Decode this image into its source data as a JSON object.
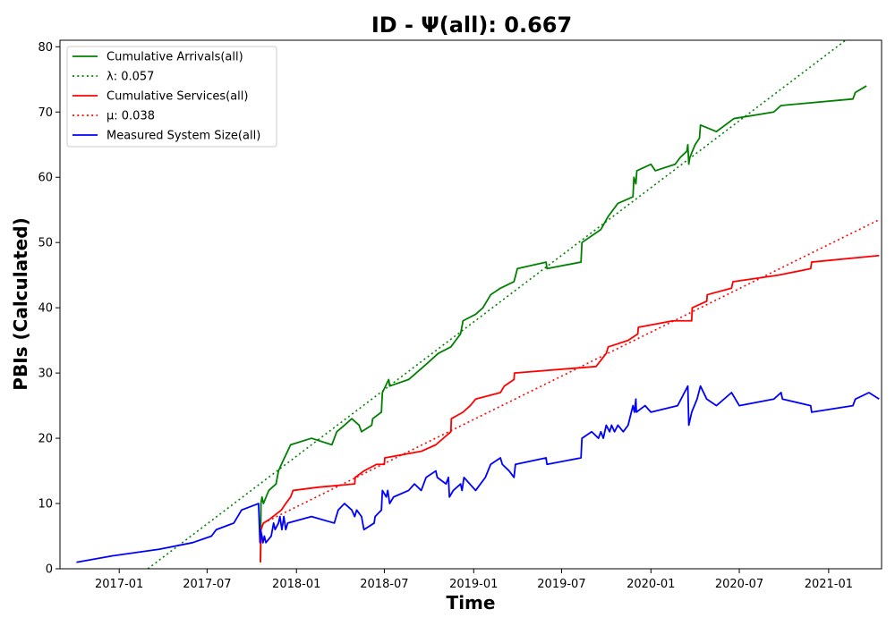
{
  "chart_data": {
    "type": "line",
    "title": "ID -  Ψ(all): 0.667",
    "xlabel": "Time",
    "ylabel": "PBIs (Calculated)",
    "xlim": [
      "2016-09-01",
      "2021-04-20"
    ],
    "ylim": [
      0,
      81
    ],
    "yticks": [
      0,
      10,
      20,
      30,
      40,
      50,
      60,
      70,
      80
    ],
    "xticks": [
      "2017-01",
      "2017-07",
      "2018-01",
      "2018-07",
      "2019-01",
      "2019-07",
      "2020-01",
      "2020-07",
      "2021-01"
    ],
    "grid": false,
    "legend_position": "upper-left",
    "series": [
      {
        "name": "Cumulative Arrivals(all)",
        "color": "#008000",
        "style": "solid",
        "points": [
          [
            "2017-10-19",
            1
          ],
          [
            "2017-10-20",
            10
          ],
          [
            "2017-10-22",
            11
          ],
          [
            "2017-10-25",
            10
          ],
          [
            "2017-11-05",
            12
          ],
          [
            "2017-11-20",
            13
          ],
          [
            "2017-11-25",
            15
          ],
          [
            "2017-12-01",
            16
          ],
          [
            "2017-12-20",
            19
          ],
          [
            "2018-02-01",
            20
          ],
          [
            "2018-03-15",
            19
          ],
          [
            "2018-03-25",
            21
          ],
          [
            "2018-04-10",
            22
          ],
          [
            "2018-04-25",
            23
          ],
          [
            "2018-05-10",
            22
          ],
          [
            "2018-05-15",
            21
          ],
          [
            "2018-06-05",
            22
          ],
          [
            "2018-06-07",
            23
          ],
          [
            "2018-06-25",
            24
          ],
          [
            "2018-06-27",
            27
          ],
          [
            "2018-07-10",
            29
          ],
          [
            "2018-07-12",
            28
          ],
          [
            "2018-08-20",
            29
          ],
          [
            "2018-09-20",
            31
          ],
          [
            "2018-10-05",
            32
          ],
          [
            "2018-10-20",
            33
          ],
          [
            "2018-11-15",
            34
          ],
          [
            "2018-11-25",
            35
          ],
          [
            "2018-12-05",
            36
          ],
          [
            "2018-12-10",
            38
          ],
          [
            "2019-01-05",
            39
          ],
          [
            "2019-01-20",
            40
          ],
          [
            "2019-02-05",
            42
          ],
          [
            "2019-02-25",
            43
          ],
          [
            "2019-03-25",
            44
          ],
          [
            "2019-04-01",
            46
          ],
          [
            "2019-05-30",
            47
          ],
          [
            "2019-06-01",
            46
          ],
          [
            "2019-08-10",
            47
          ],
          [
            "2019-08-12",
            50
          ],
          [
            "2019-09-20",
            52
          ],
          [
            "2019-10-05",
            54
          ],
          [
            "2019-10-25",
            56
          ],
          [
            "2019-11-25",
            57
          ],
          [
            "2019-11-27",
            60
          ],
          [
            "2019-12-01",
            59
          ],
          [
            "2019-12-03",
            61
          ],
          [
            "2020-01-01",
            62
          ],
          [
            "2020-01-10",
            61
          ],
          [
            "2020-02-20",
            62
          ],
          [
            "2020-03-01",
            63
          ],
          [
            "2020-03-15",
            64
          ],
          [
            "2020-03-17",
            65
          ],
          [
            "2020-03-19",
            62
          ],
          [
            "2020-03-21",
            63
          ],
          [
            "2020-04-01",
            65
          ],
          [
            "2020-04-10",
            66
          ],
          [
            "2020-04-12",
            68
          ],
          [
            "2020-05-15",
            67
          ],
          [
            "2020-06-20",
            69
          ],
          [
            "2020-09-10",
            70
          ],
          [
            "2020-09-25",
            71
          ],
          [
            "2021-02-20",
            72
          ],
          [
            "2021-02-25",
            73
          ],
          [
            "2021-03-20",
            74
          ]
        ]
      },
      {
        "name": "λ: 0.057",
        "color": "#008000",
        "style": "dotted",
        "points": [
          [
            "2017-03-01",
            0
          ],
          [
            "2021-02-05",
            81
          ]
        ]
      },
      {
        "name": "Cumulative Services(all)",
        "color": "#ff0000",
        "style": "solid",
        "points": [
          [
            "2017-10-19",
            1
          ],
          [
            "2017-10-20",
            6
          ],
          [
            "2017-10-25",
            7
          ],
          [
            "2017-11-05",
            7.5
          ],
          [
            "2017-12-01",
            9
          ],
          [
            "2017-12-10",
            10
          ],
          [
            "2017-12-20",
            11
          ],
          [
            "2017-12-25",
            12
          ],
          [
            "2018-02-15",
            12.5
          ],
          [
            "2018-05-01",
            13
          ],
          [
            "2018-05-02",
            14
          ],
          [
            "2018-05-20",
            15
          ],
          [
            "2018-06-15",
            16
          ],
          [
            "2018-07-01",
            16
          ],
          [
            "2018-07-02",
            17
          ],
          [
            "2018-09-15",
            18
          ],
          [
            "2018-10-15",
            19
          ],
          [
            "2018-11-15",
            21
          ],
          [
            "2018-11-16",
            23
          ],
          [
            "2018-12-10",
            24
          ],
          [
            "2018-12-25",
            25
          ],
          [
            "2019-01-05",
            26
          ],
          [
            "2019-02-25",
            27
          ],
          [
            "2019-03-05",
            28
          ],
          [
            "2019-03-25",
            29
          ],
          [
            "2019-03-26",
            30
          ],
          [
            "2019-09-10",
            31
          ],
          [
            "2019-10-01",
            33
          ],
          [
            "2019-10-05",
            34
          ],
          [
            "2019-11-15",
            35
          ],
          [
            "2019-12-05",
            36
          ],
          [
            "2019-12-06",
            37
          ],
          [
            "2020-02-15",
            38
          ],
          [
            "2020-03-25",
            38
          ],
          [
            "2020-03-26",
            40
          ],
          [
            "2020-04-25",
            41
          ],
          [
            "2020-04-26",
            42
          ],
          [
            "2020-06-15",
            43
          ],
          [
            "2020-06-18",
            44
          ],
          [
            "2020-09-20",
            45
          ],
          [
            "2020-11-25",
            46
          ],
          [
            "2020-11-27",
            47
          ],
          [
            "2021-04-15",
            48
          ]
        ]
      },
      {
        "name": "μ: 0.038",
        "color": "#ff0000",
        "style": "dotted",
        "points": [
          [
            "2017-10-25",
            7
          ],
          [
            "2021-04-15",
            53.5
          ]
        ]
      },
      {
        "name": "Measured System Size(all)",
        "color": "#0000ff",
        "style": "solid",
        "points": [
          [
            "2016-10-05",
            1
          ],
          [
            "2016-12-20",
            2
          ],
          [
            "2017-03-25",
            3
          ],
          [
            "2017-06-01",
            4
          ],
          [
            "2017-07-10",
            5
          ],
          [
            "2017-07-20",
            6
          ],
          [
            "2017-08-25",
            7
          ],
          [
            "2017-09-10",
            9
          ],
          [
            "2017-10-15",
            10
          ],
          [
            "2017-10-18",
            4
          ],
          [
            "2017-10-19",
            6
          ],
          [
            "2017-10-22",
            5
          ],
          [
            "2017-10-24",
            4
          ],
          [
            "2017-10-27",
            5
          ],
          [
            "2017-10-30",
            4
          ],
          [
            "2017-11-10",
            5
          ],
          [
            "2017-11-15",
            7
          ],
          [
            "2017-11-18",
            6
          ],
          [
            "2017-11-25",
            7
          ],
          [
            "2017-11-28",
            8
          ],
          [
            "2017-12-02",
            6
          ],
          [
            "2017-12-06",
            8
          ],
          [
            "2017-12-10",
            6
          ],
          [
            "2017-12-14",
            7
          ],
          [
            "2018-02-01",
            8
          ],
          [
            "2018-03-20",
            7
          ],
          [
            "2018-03-28",
            9
          ],
          [
            "2018-04-10",
            10
          ],
          [
            "2018-04-25",
            9
          ],
          [
            "2018-05-01",
            8
          ],
          [
            "2018-05-05",
            9
          ],
          [
            "2018-05-15",
            8
          ],
          [
            "2018-05-20",
            6
          ],
          [
            "2018-06-10",
            7
          ],
          [
            "2018-06-12",
            8
          ],
          [
            "2018-06-25",
            9
          ],
          [
            "2018-06-27",
            12
          ],
          [
            "2018-07-05",
            11
          ],
          [
            "2018-07-08",
            12
          ],
          [
            "2018-07-12",
            10
          ],
          [
            "2018-07-20",
            11
          ],
          [
            "2018-08-20",
            12
          ],
          [
            "2018-09-01",
            13
          ],
          [
            "2018-09-15",
            12
          ],
          [
            "2018-09-25",
            14
          ],
          [
            "2018-10-15",
            15
          ],
          [
            "2018-10-18",
            14
          ],
          [
            "2018-11-05",
            13
          ],
          [
            "2018-11-10",
            14
          ],
          [
            "2018-11-12",
            11
          ],
          [
            "2018-11-20",
            12
          ],
          [
            "2018-12-05",
            13
          ],
          [
            "2018-12-08",
            12
          ],
          [
            "2018-12-12",
            14
          ],
          [
            "2019-01-05",
            12
          ],
          [
            "2019-01-25",
            14
          ],
          [
            "2019-02-05",
            16
          ],
          [
            "2019-02-25",
            17
          ],
          [
            "2019-03-01",
            16
          ],
          [
            "2019-03-15",
            15
          ],
          [
            "2019-03-25",
            14
          ],
          [
            "2019-03-28",
            16
          ],
          [
            "2019-05-30",
            17
          ],
          [
            "2019-06-01",
            16
          ],
          [
            "2019-08-10",
            17
          ],
          [
            "2019-08-12",
            20
          ],
          [
            "2019-09-01",
            21
          ],
          [
            "2019-09-15",
            20
          ],
          [
            "2019-09-20",
            21
          ],
          [
            "2019-09-25",
            20
          ],
          [
            "2019-10-01",
            22
          ],
          [
            "2019-10-08",
            21
          ],
          [
            "2019-10-12",
            22
          ],
          [
            "2019-10-18",
            21
          ],
          [
            "2019-10-25",
            22
          ],
          [
            "2019-11-05",
            21
          ],
          [
            "2019-11-15",
            22
          ],
          [
            "2019-11-25",
            25
          ],
          [
            "2019-11-28",
            24
          ],
          [
            "2019-12-01",
            26
          ],
          [
            "2019-12-02",
            24
          ],
          [
            "2019-12-20",
            25
          ],
          [
            "2020-01-01",
            24
          ],
          [
            "2020-02-25",
            25
          ],
          [
            "2020-03-10",
            27
          ],
          [
            "2020-03-17",
            28
          ],
          [
            "2020-03-19",
            22
          ],
          [
            "2020-03-25",
            24
          ],
          [
            "2020-04-05",
            26
          ],
          [
            "2020-04-12",
            28
          ],
          [
            "2020-04-25",
            26
          ],
          [
            "2020-05-15",
            25
          ],
          [
            "2020-06-15",
            27
          ],
          [
            "2020-07-01",
            25
          ],
          [
            "2020-09-10",
            26
          ],
          [
            "2020-09-25",
            27
          ],
          [
            "2020-09-28",
            26
          ],
          [
            "2020-11-25",
            25
          ],
          [
            "2020-11-27",
            24
          ],
          [
            "2021-02-20",
            25
          ],
          [
            "2021-02-25",
            26
          ],
          [
            "2021-03-25",
            27
          ],
          [
            "2021-04-15",
            26
          ]
        ]
      }
    ]
  }
}
